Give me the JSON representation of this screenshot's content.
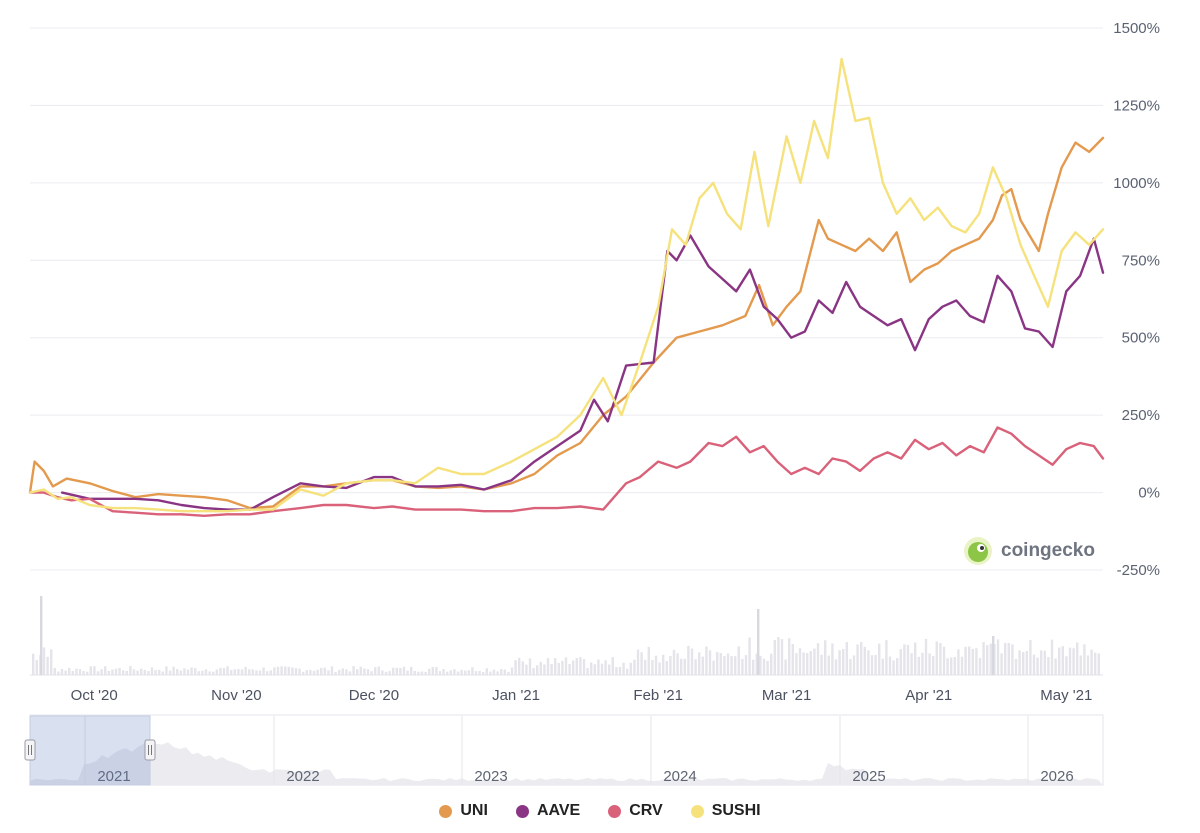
{
  "chart_data": {
    "type": "line",
    "y_axis": {
      "ticks": [
        "1500%",
        "1250%",
        "1000%",
        "750%",
        "500%",
        "250%",
        "0%",
        "-250%"
      ],
      "ylim": [
        -250,
        1500
      ]
    },
    "x_axis": {
      "ticks": [
        "Oct '20",
        "Nov '20",
        "Dec '20",
        "Jan '21",
        "Feb '21",
        "Mar '21",
        "Apr '21",
        "May '21"
      ],
      "xlim": [
        "2020-09-17",
        "2021-05-09"
      ]
    },
    "series": [
      {
        "name": "UNI",
        "color": "#e39a4e",
        "points": [
          [
            "2020-09-17",
            0
          ],
          [
            "2020-09-18",
            100
          ],
          [
            "2020-09-20",
            70
          ],
          [
            "2020-09-22",
            20
          ],
          [
            "2020-09-25",
            45
          ],
          [
            "2020-09-30",
            30
          ],
          [
            "2020-10-05",
            5
          ],
          [
            "2020-10-10",
            -15
          ],
          [
            "2020-10-15",
            -5
          ],
          [
            "2020-10-20",
            -10
          ],
          [
            "2020-10-25",
            -15
          ],
          [
            "2020-10-30",
            -25
          ],
          [
            "2020-11-04",
            -50
          ],
          [
            "2020-11-09",
            -45
          ],
          [
            "2020-11-15",
            20
          ],
          [
            "2020-11-20",
            20
          ],
          [
            "2020-11-25",
            30
          ],
          [
            "2020-12-01",
            40
          ],
          [
            "2020-12-05",
            40
          ],
          [
            "2020-12-10",
            20
          ],
          [
            "2020-12-15",
            15
          ],
          [
            "2020-12-20",
            20
          ],
          [
            "2020-12-25",
            10
          ],
          [
            "2020-12-31",
            30
          ],
          [
            "2021-01-05",
            60
          ],
          [
            "2021-01-10",
            120
          ],
          [
            "2021-01-15",
            160
          ],
          [
            "2021-01-20",
            250
          ],
          [
            "2021-01-25",
            310
          ],
          [
            "2021-01-31",
            420
          ],
          [
            "2021-02-05",
            500
          ],
          [
            "2021-02-10",
            520
          ],
          [
            "2021-02-15",
            540
          ],
          [
            "2021-02-20",
            570
          ],
          [
            "2021-02-23",
            670
          ],
          [
            "2021-02-26",
            540
          ],
          [
            "2021-03-01",
            600
          ],
          [
            "2021-03-04",
            650
          ],
          [
            "2021-03-08",
            880
          ],
          [
            "2021-03-10",
            820
          ],
          [
            "2021-03-13",
            800
          ],
          [
            "2021-03-16",
            780
          ],
          [
            "2021-03-19",
            820
          ],
          [
            "2021-03-22",
            780
          ],
          [
            "2021-03-25",
            840
          ],
          [
            "2021-03-28",
            680
          ],
          [
            "2021-03-31",
            720
          ],
          [
            "2021-04-03",
            740
          ],
          [
            "2021-04-06",
            780
          ],
          [
            "2021-04-09",
            800
          ],
          [
            "2021-04-12",
            820
          ],
          [
            "2021-04-15",
            880
          ],
          [
            "2021-04-17",
            960
          ],
          [
            "2021-04-19",
            980
          ],
          [
            "2021-04-21",
            880
          ],
          [
            "2021-04-23",
            830
          ],
          [
            "2021-04-25",
            780
          ],
          [
            "2021-04-27",
            900
          ],
          [
            "2021-04-30",
            1050
          ],
          [
            "2021-05-03",
            1130
          ],
          [
            "2021-05-06",
            1100
          ],
          [
            "2021-05-09",
            1145
          ]
        ]
      },
      {
        "name": "AAVE",
        "color": "#8a3584",
        "points": [
          [
            "2020-09-24",
            0
          ],
          [
            "2020-09-30",
            -20
          ],
          [
            "2020-10-05",
            -20
          ],
          [
            "2020-10-10",
            -20
          ],
          [
            "2020-10-15",
            -25
          ],
          [
            "2020-10-20",
            -40
          ],
          [
            "2020-10-25",
            -50
          ],
          [
            "2020-10-30",
            -55
          ],
          [
            "2020-11-04",
            -55
          ],
          [
            "2020-11-09",
            -15
          ],
          [
            "2020-11-15",
            30
          ],
          [
            "2020-11-20",
            20
          ],
          [
            "2020-11-25",
            15
          ],
          [
            "2020-12-01",
            50
          ],
          [
            "2020-12-05",
            50
          ],
          [
            "2020-12-10",
            20
          ],
          [
            "2020-12-15",
            20
          ],
          [
            "2020-12-20",
            25
          ],
          [
            "2020-12-25",
            10
          ],
          [
            "2020-12-31",
            40
          ],
          [
            "2021-01-05",
            100
          ],
          [
            "2021-01-10",
            150
          ],
          [
            "2021-01-15",
            200
          ],
          [
            "2021-01-18",
            300
          ],
          [
            "2021-01-21",
            230
          ],
          [
            "2021-01-25",
            410
          ],
          [
            "2021-01-31",
            420
          ],
          [
            "2021-02-03",
            780
          ],
          [
            "2021-02-05",
            750
          ],
          [
            "2021-02-08",
            830
          ],
          [
            "2021-02-12",
            730
          ],
          [
            "2021-02-15",
            690
          ],
          [
            "2021-02-18",
            650
          ],
          [
            "2021-02-21",
            720
          ],
          [
            "2021-02-24",
            600
          ],
          [
            "2021-02-27",
            560
          ],
          [
            "2021-03-02",
            500
          ],
          [
            "2021-03-05",
            520
          ],
          [
            "2021-03-08",
            620
          ],
          [
            "2021-03-11",
            580
          ],
          [
            "2021-03-14",
            680
          ],
          [
            "2021-03-17",
            600
          ],
          [
            "2021-03-20",
            570
          ],
          [
            "2021-03-23",
            540
          ],
          [
            "2021-03-26",
            560
          ],
          [
            "2021-03-29",
            460
          ],
          [
            "2021-04-01",
            560
          ],
          [
            "2021-04-04",
            600
          ],
          [
            "2021-04-07",
            620
          ],
          [
            "2021-04-10",
            570
          ],
          [
            "2021-04-13",
            550
          ],
          [
            "2021-04-16",
            700
          ],
          [
            "2021-04-19",
            650
          ],
          [
            "2021-04-22",
            530
          ],
          [
            "2021-04-25",
            520
          ],
          [
            "2021-04-28",
            470
          ],
          [
            "2021-05-01",
            650
          ],
          [
            "2021-05-04",
            700
          ],
          [
            "2021-05-07",
            820
          ],
          [
            "2021-05-09",
            710
          ]
        ]
      },
      {
        "name": "CRV",
        "color": "#d96179",
        "points": [
          [
            "2020-09-17",
            0
          ],
          [
            "2020-09-20",
            0
          ],
          [
            "2020-09-23",
            -15
          ],
          [
            "2020-09-26",
            -25
          ],
          [
            "2020-09-30",
            -20
          ],
          [
            "2020-10-05",
            -60
          ],
          [
            "2020-10-10",
            -65
          ],
          [
            "2020-10-15",
            -70
          ],
          [
            "2020-10-20",
            -70
          ],
          [
            "2020-10-25",
            -75
          ],
          [
            "2020-10-30",
            -70
          ],
          [
            "2020-11-04",
            -70
          ],
          [
            "2020-11-09",
            -60
          ],
          [
            "2020-11-15",
            -50
          ],
          [
            "2020-11-20",
            -40
          ],
          [
            "2020-11-25",
            -40
          ],
          [
            "2020-12-01",
            -50
          ],
          [
            "2020-12-05",
            -45
          ],
          [
            "2020-12-10",
            -55
          ],
          [
            "2020-12-15",
            -55
          ],
          [
            "2020-12-20",
            -55
          ],
          [
            "2020-12-25",
            -60
          ],
          [
            "2020-12-31",
            -60
          ],
          [
            "2021-01-05",
            -50
          ],
          [
            "2021-01-10",
            -50
          ],
          [
            "2021-01-15",
            -45
          ],
          [
            "2021-01-20",
            -55
          ],
          [
            "2021-01-25",
            30
          ],
          [
            "2021-01-28",
            50
          ],
          [
            "2021-02-01",
            100
          ],
          [
            "2021-02-05",
            80
          ],
          [
            "2021-02-08",
            100
          ],
          [
            "2021-02-12",
            160
          ],
          [
            "2021-02-15",
            150
          ],
          [
            "2021-02-18",
            180
          ],
          [
            "2021-02-21",
            130
          ],
          [
            "2021-02-24",
            150
          ],
          [
            "2021-02-27",
            100
          ],
          [
            "2021-03-02",
            60
          ],
          [
            "2021-03-05",
            80
          ],
          [
            "2021-03-08",
            60
          ],
          [
            "2021-03-11",
            110
          ],
          [
            "2021-03-14",
            100
          ],
          [
            "2021-03-17",
            70
          ],
          [
            "2021-03-20",
            110
          ],
          [
            "2021-03-23",
            130
          ],
          [
            "2021-03-26",
            110
          ],
          [
            "2021-03-29",
            170
          ],
          [
            "2021-04-01",
            140
          ],
          [
            "2021-04-04",
            160
          ],
          [
            "2021-04-07",
            120
          ],
          [
            "2021-04-10",
            150
          ],
          [
            "2021-04-13",
            130
          ],
          [
            "2021-04-16",
            210
          ],
          [
            "2021-04-19",
            190
          ],
          [
            "2021-04-22",
            150
          ],
          [
            "2021-04-25",
            120
          ],
          [
            "2021-04-28",
            90
          ],
          [
            "2021-05-01",
            140
          ],
          [
            "2021-05-04",
            160
          ],
          [
            "2021-05-07",
            150
          ],
          [
            "2021-05-09",
            110
          ]
        ]
      },
      {
        "name": "SUSHI",
        "color": "#f6e27d",
        "points": [
          [
            "2020-09-17",
            0
          ],
          [
            "2020-09-20",
            10
          ],
          [
            "2020-09-23",
            -20
          ],
          [
            "2020-09-26",
            -15
          ],
          [
            "2020-09-30",
            -40
          ],
          [
            "2020-10-05",
            -50
          ],
          [
            "2020-10-10",
            -50
          ],
          [
            "2020-10-15",
            -55
          ],
          [
            "2020-10-20",
            -60
          ],
          [
            "2020-10-25",
            -60
          ],
          [
            "2020-10-30",
            -60
          ],
          [
            "2020-11-04",
            -55
          ],
          [
            "2020-11-09",
            -55
          ],
          [
            "2020-11-15",
            10
          ],
          [
            "2020-11-20",
            -10
          ],
          [
            "2020-11-25",
            30
          ],
          [
            "2020-12-01",
            40
          ],
          [
            "2020-12-05",
            40
          ],
          [
            "2020-12-10",
            30
          ],
          [
            "2020-12-15",
            80
          ],
          [
            "2020-12-20",
            60
          ],
          [
            "2020-12-25",
            60
          ],
          [
            "2020-12-31",
            100
          ],
          [
            "2021-01-05",
            140
          ],
          [
            "2021-01-10",
            180
          ],
          [
            "2021-01-15",
            250
          ],
          [
            "2021-01-20",
            370
          ],
          [
            "2021-01-24",
            250
          ],
          [
            "2021-01-28",
            420
          ],
          [
            "2021-02-01",
            600
          ],
          [
            "2021-02-04",
            850
          ],
          [
            "2021-02-07",
            800
          ],
          [
            "2021-02-10",
            950
          ],
          [
            "2021-02-13",
            1000
          ],
          [
            "2021-02-16",
            900
          ],
          [
            "2021-02-19",
            850
          ],
          [
            "2021-02-22",
            1100
          ],
          [
            "2021-02-25",
            860
          ],
          [
            "2021-03-01",
            1150
          ],
          [
            "2021-03-04",
            1000
          ],
          [
            "2021-03-07",
            1200
          ],
          [
            "2021-03-10",
            1080
          ],
          [
            "2021-03-13",
            1400
          ],
          [
            "2021-03-16",
            1200
          ],
          [
            "2021-03-19",
            1210
          ],
          [
            "2021-03-22",
            1000
          ],
          [
            "2021-03-25",
            900
          ],
          [
            "2021-03-28",
            950
          ],
          [
            "2021-03-31",
            880
          ],
          [
            "2021-04-03",
            920
          ],
          [
            "2021-04-06",
            860
          ],
          [
            "2021-04-09",
            840
          ],
          [
            "2021-04-12",
            900
          ],
          [
            "2021-04-15",
            1050
          ],
          [
            "2021-04-18",
            950
          ],
          [
            "2021-04-21",
            800
          ],
          [
            "2021-04-24",
            700
          ],
          [
            "2021-04-27",
            600
          ],
          [
            "2021-04-30",
            780
          ],
          [
            "2021-05-03",
            840
          ],
          [
            "2021-05-06",
            800
          ],
          [
            "2021-05-09",
            850
          ]
        ]
      }
    ],
    "legend": [
      "UNI",
      "AAVE",
      "CRV",
      "SUSHI"
    ],
    "legend_placement": "bottom-center",
    "grid": true
  },
  "navigator": {
    "years": [
      "2021",
      "2022",
      "2023",
      "2024",
      "2025",
      "2026"
    ]
  },
  "watermark": {
    "text": "coingecko"
  }
}
